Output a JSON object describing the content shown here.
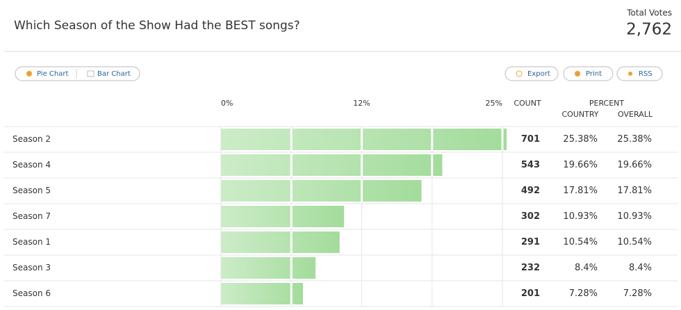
{
  "header": {
    "title": "Which Season of the Show Had the BEST songs?",
    "total_label": "Total Votes",
    "total": "2,762"
  },
  "toolbar": {
    "views": [
      "Pie Chart",
      "Bar Chart"
    ],
    "actions": [
      "Export",
      "Print",
      "RSS"
    ]
  },
  "chart_data": {
    "type": "bar",
    "orientation": "horizontal",
    "categories": [
      "Season 2",
      "Season 4",
      "Season 5",
      "Season 7",
      "Season 1",
      "Season 3",
      "Season 6"
    ],
    "values": [
      25.38,
      19.66,
      17.81,
      10.93,
      10.54,
      8.4,
      7.28
    ],
    "xlim": [
      0,
      25
    ],
    "xticks": [
      {
        "value": 0,
        "label": "0%"
      },
      {
        "value": 12.5,
        "label": "12%"
      },
      {
        "value": 25,
        "label": "25%"
      }
    ],
    "minor_xticks": [
      6.25,
      18.75
    ],
    "color": "#a3dc9b"
  },
  "table": {
    "headers": {
      "count": "COUNT",
      "percent": "PERCENT",
      "country": "COUNTRY",
      "overall": "OVERALL"
    },
    "rows": [
      {
        "count": 701,
        "country": "25.38%",
        "overall": "25.38%"
      },
      {
        "count": 543,
        "country": "19.66%",
        "overall": "19.66%"
      },
      {
        "count": 492,
        "country": "17.81%",
        "overall": "17.81%"
      },
      {
        "count": 302,
        "country": "10.93%",
        "overall": "10.93%"
      },
      {
        "count": 291,
        "country": "10.54%",
        "overall": "10.54%"
      },
      {
        "count": 232,
        "country": "8.4%",
        "overall": "8.4%"
      },
      {
        "count": 201,
        "country": "7.28%",
        "overall": "7.28%"
      }
    ]
  }
}
